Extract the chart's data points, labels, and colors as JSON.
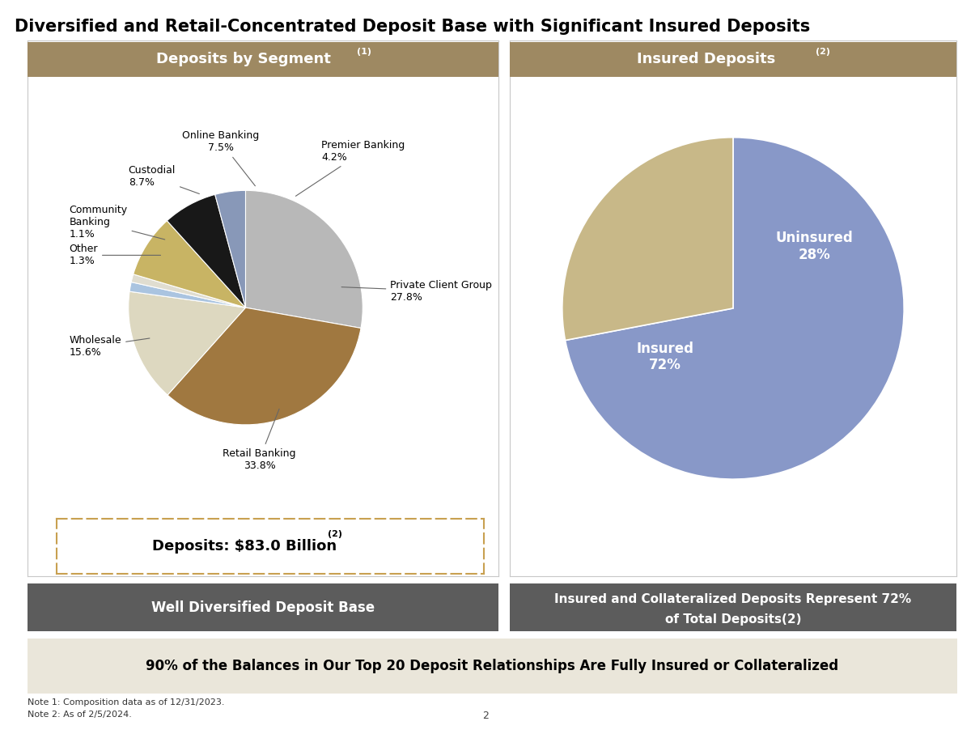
{
  "title": "Diversified and Retail-Concentrated Deposit Base with Significant Insured Deposits",
  "title_fontsize": 15,
  "background_color": "#ffffff",
  "left_header_raw": "Deposits by Segment",
  "left_header_sup": "(1)",
  "left_header_bg": "#9e8962",
  "left_header_color": "#ffffff",
  "pie1_labels": [
    "Private Client Group",
    "Retail Banking",
    "Wholesale",
    "Other",
    "Community Banking",
    "Custodial",
    "Online Banking",
    "Premier Banking"
  ],
  "pie1_values": [
    27.8,
    33.8,
    15.6,
    1.3,
    1.1,
    8.7,
    7.5,
    4.2
  ],
  "pie1_colors": [
    "#b8b8b8",
    "#a07840",
    "#ddd8c0",
    "#aac4e0",
    "#e0ddd0",
    "#c8b464",
    "#181818",
    "#8898b8"
  ],
  "pie1_startangle": 90,
  "deposit_box_text": "Deposits: $83.0 Billion",
  "deposit_box_sup": "(2)",
  "deposit_box_border": "#c8a050",
  "right_header_raw": "Insured Deposits",
  "right_header_sup": "(2)",
  "right_header_bg": "#9e8962",
  "right_header_color": "#ffffff",
  "pie2_labels": [
    "Insured",
    "Uninsured"
  ],
  "pie2_values": [
    72,
    28
  ],
  "pie2_colors": [
    "#8898c8",
    "#c8b888"
  ],
  "pie2_startangle": 90,
  "bottom_left_text": "Well Diversified Deposit Base",
  "bottom_left_bg": "#5c5c5c",
  "bottom_left_color": "#ffffff",
  "bottom_right_line1": "Insured and Collateralized Deposits Represent 72%",
  "bottom_right_line2": "of Total Deposits",
  "bottom_right_sup": "(2)",
  "bottom_right_bg": "#5c5c5c",
  "bottom_right_color": "#ffffff",
  "banner_text": "90% of the Balances in Our Top 20 Deposit Relationships Are Fully Insured or Collateralized",
  "banner_bg": "#eae6da",
  "banner_color": "#000000",
  "note1": "Note 1: Composition data as of 12/31/2023.",
  "note2": "Note 2: As of 2/5/2024.",
  "page_num": "2"
}
